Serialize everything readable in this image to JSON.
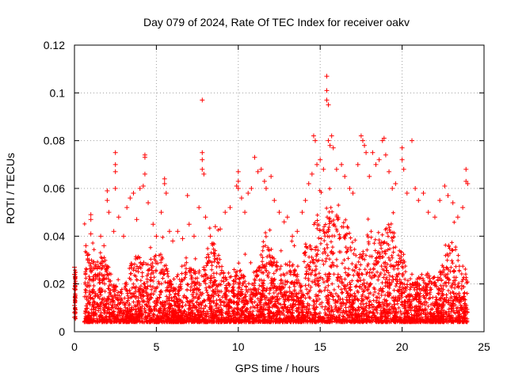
{
  "chart_data": {
    "type": "scatter",
    "title": "Day 079 of 2024, Rate Of TEC Index for receiver oakv",
    "xlabel": "GPS time / hours",
    "ylabel": "ROTI / TECUs",
    "xlim": [
      0,
      25
    ],
    "ylim": [
      0,
      0.12
    ],
    "xticks": [
      "0",
      "5",
      "10",
      "15",
      "20",
      "25"
    ],
    "yticks": [
      "0",
      "0.02",
      "0.04",
      "0.06",
      "0.08",
      "0.1",
      "0.12"
    ],
    "xtick_values": [
      0,
      5,
      10,
      15,
      20,
      25
    ],
    "ytick_values": [
      0,
      0.02,
      0.04,
      0.06,
      0.08,
      0.1,
      0.12
    ],
    "grid": true,
    "marker": "+",
    "color": "#ff0000",
    "series": [
      {
        "name": "ROTI",
        "points": [
          [
            0.0,
            0.027
          ],
          [
            0.0,
            0.024
          ],
          [
            0.0,
            0.018
          ],
          [
            0.0,
            0.011
          ],
          [
            0.0,
            0.008
          ],
          [
            0.0,
            0.006
          ],
          [
            0.7,
            0.036
          ],
          [
            0.8,
            0.032
          ],
          [
            0.9,
            0.03
          ],
          [
            1.0,
            0.049
          ],
          [
            1.0,
            0.047
          ],
          [
            1.0,
            0.041
          ],
          [
            1.3,
            0.028
          ],
          [
            1.6,
            0.04
          ],
          [
            1.8,
            0.036
          ],
          [
            2.0,
            0.059
          ],
          [
            2.0,
            0.055
          ],
          [
            2.1,
            0.05
          ],
          [
            2.4,
            0.042
          ],
          [
            2.5,
            0.075
          ],
          [
            2.5,
            0.07
          ],
          [
            2.5,
            0.067
          ],
          [
            2.5,
            0.06
          ],
          [
            2.7,
            0.048
          ],
          [
            3.0,
            0.04
          ],
          [
            3.2,
            0.052
          ],
          [
            3.4,
            0.056
          ],
          [
            3.6,
            0.058
          ],
          [
            3.8,
            0.047
          ],
          [
            4.0,
            0.06
          ],
          [
            4.2,
            0.061
          ],
          [
            4.3,
            0.074
          ],
          [
            4.3,
            0.073
          ],
          [
            4.3,
            0.066
          ],
          [
            4.5,
            0.054
          ],
          [
            4.8,
            0.045
          ],
          [
            5.0,
            0.04
          ],
          [
            5.3,
            0.05
          ],
          [
            5.5,
            0.064
          ],
          [
            5.5,
            0.062
          ],
          [
            5.6,
            0.058
          ],
          [
            5.8,
            0.042
          ],
          [
            6.0,
            0.038
          ],
          [
            6.3,
            0.042
          ],
          [
            6.6,
            0.039
          ],
          [
            6.9,
            0.057
          ],
          [
            7.0,
            0.045
          ],
          [
            7.3,
            0.04
          ],
          [
            7.6,
            0.052
          ],
          [
            7.8,
            0.097
          ],
          [
            7.8,
            0.075
          ],
          [
            7.8,
            0.072
          ],
          [
            7.8,
            0.068
          ],
          [
            7.9,
            0.066
          ],
          [
            8.0,
            0.048
          ],
          [
            8.3,
            0.04
          ],
          [
            8.6,
            0.044
          ],
          [
            8.9,
            0.043
          ],
          [
            9.2,
            0.05
          ],
          [
            9.5,
            0.052
          ],
          [
            9.9,
            0.061
          ],
          [
            10.0,
            0.067
          ],
          [
            10.0,
            0.063
          ],
          [
            10.0,
            0.06
          ],
          [
            10.2,
            0.056
          ],
          [
            10.4,
            0.05
          ],
          [
            10.6,
            0.058
          ],
          [
            10.8,
            0.06
          ],
          [
            11.0,
            0.073
          ],
          [
            11.2,
            0.067
          ],
          [
            11.4,
            0.068
          ],
          [
            11.6,
            0.063
          ],
          [
            11.7,
            0.06
          ],
          [
            12.0,
            0.065
          ],
          [
            12.2,
            0.055
          ],
          [
            12.5,
            0.05
          ],
          [
            12.8,
            0.046
          ],
          [
            13.0,
            0.048
          ],
          [
            13.3,
            0.04
          ],
          [
            13.6,
            0.042
          ],
          [
            13.9,
            0.05
          ],
          [
            14.1,
            0.055
          ],
          [
            14.3,
            0.062
          ],
          [
            14.5,
            0.066
          ],
          [
            14.6,
            0.082
          ],
          [
            14.7,
            0.08
          ],
          [
            14.8,
            0.07
          ],
          [
            15.0,
            0.072
          ],
          [
            15.2,
            0.068
          ],
          [
            15.4,
            0.107
          ],
          [
            15.4,
            0.101
          ],
          [
            15.4,
            0.097
          ],
          [
            15.5,
            0.095
          ],
          [
            15.5,
            0.08
          ],
          [
            15.6,
            0.078
          ],
          [
            15.7,
            0.082
          ],
          [
            15.8,
            0.077
          ],
          [
            16.0,
            0.068
          ],
          [
            16.3,
            0.07
          ],
          [
            16.5,
            0.065
          ],
          [
            16.8,
            0.06
          ],
          [
            17.0,
            0.058
          ],
          [
            17.3,
            0.07
          ],
          [
            17.5,
            0.082
          ],
          [
            17.6,
            0.08
          ],
          [
            17.7,
            0.078
          ],
          [
            17.8,
            0.075
          ],
          [
            18.0,
            0.065
          ],
          [
            18.2,
            0.075
          ],
          [
            18.4,
            0.07
          ],
          [
            18.6,
            0.072
          ],
          [
            18.8,
            0.08
          ],
          [
            18.9,
            0.081
          ],
          [
            19.0,
            0.074
          ],
          [
            19.2,
            0.067
          ],
          [
            19.4,
            0.06
          ],
          [
            19.6,
            0.062
          ],
          [
            20.0,
            0.077
          ],
          [
            20.0,
            0.072
          ],
          [
            20.1,
            0.068
          ],
          [
            20.3,
            0.058
          ],
          [
            20.6,
            0.08
          ],
          [
            20.8,
            0.06
          ],
          [
            21.0,
            0.055
          ],
          [
            21.3,
            0.058
          ],
          [
            21.6,
            0.05
          ],
          [
            22.0,
            0.048
          ],
          [
            22.3,
            0.055
          ],
          [
            22.6,
            0.061
          ],
          [
            22.8,
            0.057
          ],
          [
            23.1,
            0.054
          ],
          [
            23.4,
            0.048
          ],
          [
            23.7,
            0.052
          ],
          [
            23.9,
            0.068
          ],
          [
            23.9,
            0.063
          ],
          [
            24.0,
            0.062
          ]
        ]
      }
    ]
  }
}
